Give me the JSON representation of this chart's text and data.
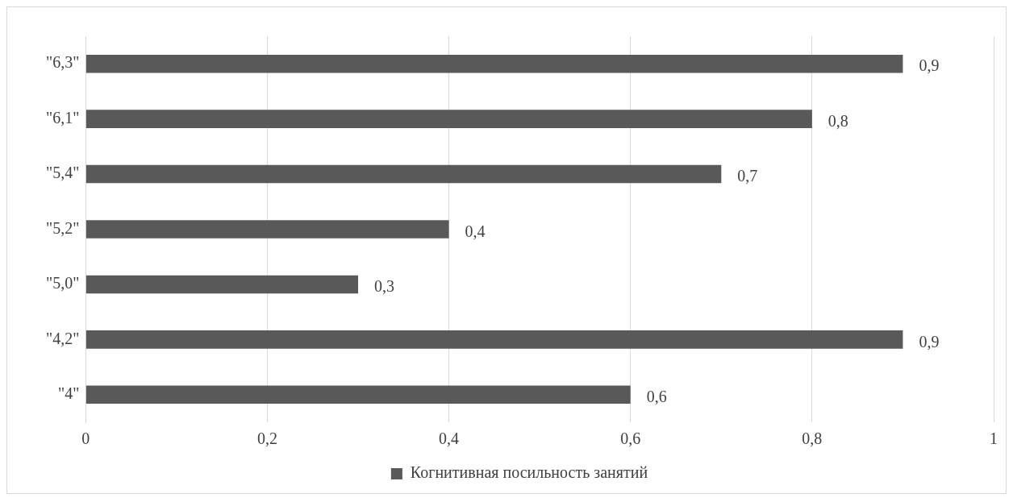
{
  "chart_data": {
    "type": "bar",
    "orientation": "horizontal",
    "categories": [
      "\"6,3\"",
      "\"6,1\"",
      "\"5,4\"",
      "\"5,2\"",
      "\"5,0\"",
      "\"4,2\"",
      "\"4\""
    ],
    "series": [
      {
        "name": "Когнитивная посильность занятий",
        "color": "#595959",
        "values": [
          0.9,
          0.8,
          0.7,
          0.4,
          0.3,
          0.9,
          0.6
        ],
        "value_labels": [
          "0,9",
          "0,8",
          "0,7",
          "0,4",
          "0,3",
          "0,9",
          "0,6"
        ]
      }
    ],
    "xlim": [
      0,
      1
    ],
    "xticks": [
      0,
      {
        "value": 0.2,
        "label": "0,2"
      },
      {
        "value": 0.4,
        "label": "0,4"
      },
      {
        "value": 0.6,
        "label": "0,6"
      },
      {
        "value": 0.8,
        "label": "0,8"
      },
      1
    ],
    "grid": "x",
    "legend": "bottom"
  }
}
